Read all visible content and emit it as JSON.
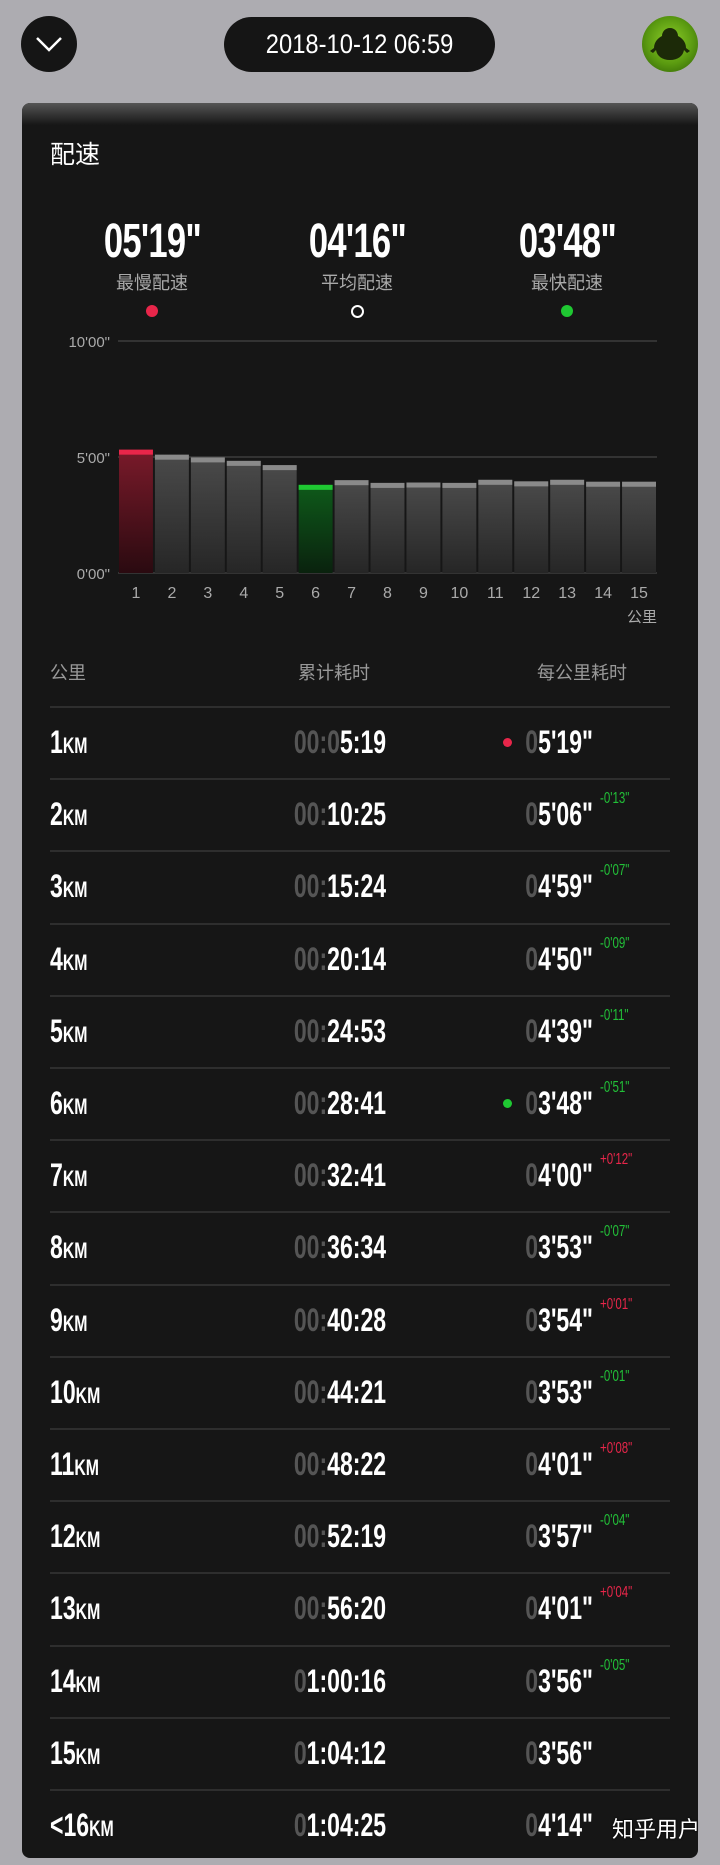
{
  "header": {
    "back_icon": "chevron-down-icon",
    "datetime": "2018-10-12 06:59",
    "avatar_icon": "frog-avatar"
  },
  "card": {
    "title": "配速",
    "stats": [
      {
        "value": "05'19\"",
        "label": "最慢配速",
        "dot_color": "#e8264a"
      },
      {
        "value": "04'16\"",
        "label": "平均配速",
        "dot_color": "hollow-white"
      },
      {
        "value": "03'48\"",
        "label": "最快配速",
        "dot_color": "#1fc832"
      }
    ]
  },
  "chart_data": {
    "type": "bar",
    "categories": [
      "1",
      "2",
      "3",
      "4",
      "5",
      "6",
      "7",
      "8",
      "9",
      "10",
      "11",
      "12",
      "13",
      "14",
      "15"
    ],
    "values_seconds": [
      319,
      306,
      299,
      290,
      279,
      228,
      240,
      233,
      234,
      233,
      241,
      237,
      241,
      236,
      236
    ],
    "highlight": {
      "slowest": "1",
      "fastest": "6"
    },
    "colors": {
      "slowest": "#e8264a",
      "fastest": "#1fc832",
      "normal": "#3a3a3a"
    },
    "ylim_seconds": [
      0,
      600
    ],
    "ytick_labels": [
      "10'00\"",
      "5'00\"",
      "0'00\""
    ],
    "xlabel": "公里",
    "grid": true
  },
  "table": {
    "headers": [
      "公里",
      "累计耗时",
      "每公里耗时"
    ],
    "unit": "KM",
    "rows": [
      {
        "km": "1",
        "cumulative": "00:05:19",
        "pace": "05'19\"",
        "delta": "",
        "marker": "slowest"
      },
      {
        "km": "2",
        "cumulative": "00:10:25",
        "pace": "05'06\"",
        "delta": "-0'13\""
      },
      {
        "km": "3",
        "cumulative": "00:15:24",
        "pace": "04'59\"",
        "delta": "-0'07\""
      },
      {
        "km": "4",
        "cumulative": "00:20:14",
        "pace": "04'50\"",
        "delta": "-0'09\""
      },
      {
        "km": "5",
        "cumulative": "00:24:53",
        "pace": "04'39\"",
        "delta": "-0'11\""
      },
      {
        "km": "6",
        "cumulative": "00:28:41",
        "pace": "03'48\"",
        "delta": "-0'51\"",
        "marker": "fastest"
      },
      {
        "km": "7",
        "cumulative": "00:32:41",
        "pace": "04'00\"",
        "delta": "+0'12\""
      },
      {
        "km": "8",
        "cumulative": "00:36:34",
        "pace": "03'53\"",
        "delta": "-0'07\""
      },
      {
        "km": "9",
        "cumulative": "00:40:28",
        "pace": "03'54\"",
        "delta": "+0'01\""
      },
      {
        "km": "10",
        "cumulative": "00:44:21",
        "pace": "03'53\"",
        "delta": "-0'01\""
      },
      {
        "km": "11",
        "cumulative": "00:48:22",
        "pace": "04'01\"",
        "delta": "+0'08\""
      },
      {
        "km": "12",
        "cumulative": "00:52:19",
        "pace": "03'57\"",
        "delta": "-0'04\""
      },
      {
        "km": "13",
        "cumulative": "00:56:20",
        "pace": "04'01\"",
        "delta": "+0'04\""
      },
      {
        "km": "14",
        "cumulative": "01:00:16",
        "pace": "03'56\"",
        "delta": "-0'05\""
      },
      {
        "km": "15",
        "cumulative": "01:04:12",
        "pace": "03'56\"",
        "delta": ""
      },
      {
        "km": "<16",
        "cumulative": "01:04:25",
        "pace": "04'14\"",
        "delta": ""
      }
    ],
    "delta_colors": {
      "faster": "#22c038",
      "slower": "#e8264a"
    }
  },
  "watermark": "知乎用户"
}
